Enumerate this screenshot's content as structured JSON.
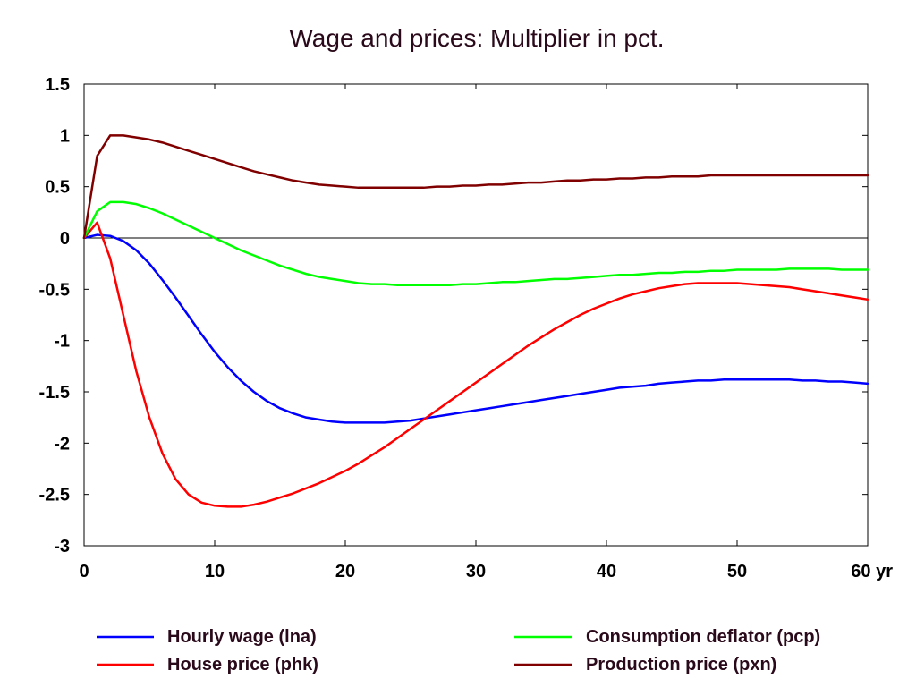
{
  "chart_data": {
    "type": "line",
    "title": "Wage and prices: Multiplier in pct.",
    "xlabel": "",
    "ylabel": "",
    "xlim": [
      0,
      60
    ],
    "ylim": [
      -3,
      1.5
    ],
    "x_ticks": [
      0,
      10,
      20,
      30,
      40,
      50,
      60
    ],
    "x_tick_labels": [
      "0",
      "10",
      "20",
      "30",
      "40",
      "50",
      "60 yr"
    ],
    "y_ticks": [
      1.5,
      1,
      0.5,
      0,
      -0.5,
      -1,
      -1.5,
      -2,
      -2.5,
      -3
    ],
    "y_tick_labels": [
      "1.5",
      "1",
      "0.5",
      "0",
      "-0.5",
      "-1",
      "-1.5",
      "-2",
      "-2.5",
      "-3"
    ],
    "zero_line": true,
    "grid": false,
    "legend_position": "bottom",
    "x": [
      0,
      1,
      2,
      3,
      4,
      5,
      6,
      7,
      8,
      9,
      10,
      11,
      12,
      13,
      14,
      15,
      16,
      17,
      18,
      19,
      20,
      21,
      22,
      23,
      24,
      25,
      26,
      27,
      28,
      29,
      30,
      31,
      32,
      33,
      34,
      35,
      36,
      37,
      38,
      39,
      40,
      41,
      42,
      43,
      44,
      45,
      46,
      47,
      48,
      49,
      50,
      51,
      52,
      53,
      54,
      55,
      56,
      57,
      58,
      59,
      60
    ],
    "series": [
      {
        "name": "Hourly wage (lna)",
        "color": "#0000ff",
        "values": [
          0,
          0.03,
          0.02,
          -0.03,
          -0.12,
          -0.25,
          -0.41,
          -0.58,
          -0.76,
          -0.94,
          -1.11,
          -1.26,
          -1.39,
          -1.5,
          -1.59,
          -1.66,
          -1.71,
          -1.75,
          -1.77,
          -1.79,
          -1.8,
          -1.8,
          -1.8,
          -1.8,
          -1.79,
          -1.78,
          -1.76,
          -1.74,
          -1.72,
          -1.7,
          -1.68,
          -1.66,
          -1.64,
          -1.62,
          -1.6,
          -1.58,
          -1.56,
          -1.54,
          -1.52,
          -1.5,
          -1.48,
          -1.46,
          -1.45,
          -1.44,
          -1.42,
          -1.41,
          -1.4,
          -1.39,
          -1.39,
          -1.38,
          -1.38,
          -1.38,
          -1.38,
          -1.38,
          -1.38,
          -1.39,
          -1.39,
          -1.4,
          -1.4,
          -1.41,
          -1.42
        ]
      },
      {
        "name": "House price (phk)",
        "color": "#ff0000",
        "values": [
          0,
          0.15,
          -0.2,
          -0.75,
          -1.3,
          -1.75,
          -2.1,
          -2.35,
          -2.5,
          -2.58,
          -2.61,
          -2.62,
          -2.62,
          -2.6,
          -2.57,
          -2.53,
          -2.49,
          -2.44,
          -2.39,
          -2.33,
          -2.27,
          -2.2,
          -2.12,
          -2.04,
          -1.95,
          -1.86,
          -1.77,
          -1.68,
          -1.59,
          -1.5,
          -1.41,
          -1.32,
          -1.23,
          -1.14,
          -1.05,
          -0.97,
          -0.89,
          -0.82,
          -0.75,
          -0.69,
          -0.64,
          -0.59,
          -0.55,
          -0.52,
          -0.49,
          -0.47,
          -0.45,
          -0.44,
          -0.44,
          -0.44,
          -0.44,
          -0.45,
          -0.46,
          -0.47,
          -0.48,
          -0.5,
          -0.52,
          -0.54,
          -0.56,
          -0.58,
          -0.6
        ]
      },
      {
        "name": "Consumption deflator (pcp)",
        "color": "#00ff00",
        "values": [
          0,
          0.26,
          0.35,
          0.35,
          0.33,
          0.29,
          0.24,
          0.18,
          0.12,
          0.06,
          0,
          -0.06,
          -0.12,
          -0.17,
          -0.22,
          -0.27,
          -0.31,
          -0.35,
          -0.38,
          -0.4,
          -0.42,
          -0.44,
          -0.45,
          -0.45,
          -0.46,
          -0.46,
          -0.46,
          -0.46,
          -0.46,
          -0.45,
          -0.45,
          -0.44,
          -0.43,
          -0.43,
          -0.42,
          -0.41,
          -0.4,
          -0.4,
          -0.39,
          -0.38,
          -0.37,
          -0.36,
          -0.36,
          -0.35,
          -0.34,
          -0.34,
          -0.33,
          -0.33,
          -0.32,
          -0.32,
          -0.31,
          -0.31,
          -0.31,
          -0.31,
          -0.3,
          -0.3,
          -0.3,
          -0.3,
          -0.31,
          -0.31,
          -0.31
        ]
      },
      {
        "name": "Production price (pxn)",
        "color": "#800000",
        "values": [
          0,
          0.8,
          1,
          1,
          0.98,
          0.96,
          0.93,
          0.89,
          0.85,
          0.81,
          0.77,
          0.73,
          0.69,
          0.65,
          0.62,
          0.59,
          0.56,
          0.54,
          0.52,
          0.51,
          0.5,
          0.49,
          0.49,
          0.49,
          0.49,
          0.49,
          0.49,
          0.5,
          0.5,
          0.51,
          0.51,
          0.52,
          0.52,
          0.53,
          0.54,
          0.54,
          0.55,
          0.56,
          0.56,
          0.57,
          0.57,
          0.58,
          0.58,
          0.59,
          0.59,
          0.6,
          0.6,
          0.6,
          0.61,
          0.61,
          0.61,
          0.61,
          0.61,
          0.61,
          0.61,
          0.61,
          0.61,
          0.61,
          0.61,
          0.61,
          0.61
        ]
      }
    ]
  }
}
